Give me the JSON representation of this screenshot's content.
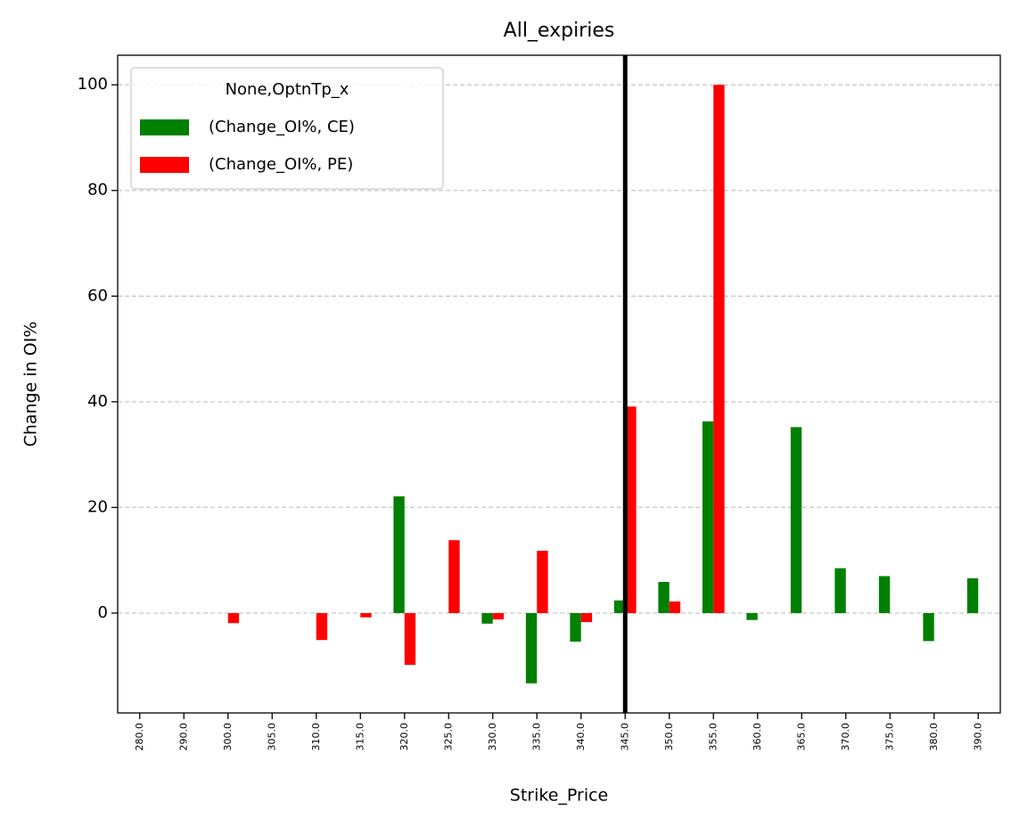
{
  "chart_data": {
    "type": "bar",
    "title": "All_expiries",
    "x_label": "Strike_Price",
    "y_label": "Change in OI%",
    "categories": [
      "280.0",
      "290.0",
      "300.0",
      "305.0",
      "310.0",
      "315.0",
      "320.0",
      "325.0",
      "330.0",
      "335.0",
      "340.0",
      "345.0",
      "350.0",
      "355.0",
      "360.0",
      "365.0",
      "370.0",
      "375.0",
      "380.0",
      "390.0"
    ],
    "series": [
      {
        "name": "(Change_OI%, CE)",
        "color": "#008000",
        "values": [
          null,
          null,
          null,
          null,
          null,
          null,
          22.1,
          null,
          -2.0,
          -13.3,
          -5.4,
          2.4,
          5.9,
          36.3,
          -1.3,
          35.2,
          8.5,
          7.0,
          -5.3,
          6.6
        ]
      },
      {
        "name": "(Change_OI%, PE)",
        "color": "#ff0000",
        "values": [
          null,
          null,
          -1.9,
          null,
          -5.1,
          -0.8,
          -9.8,
          13.8,
          -1.2,
          11.8,
          -1.7,
          39.1,
          2.2,
          100,
          null,
          null,
          null,
          null,
          null,
          null
        ]
      }
    ],
    "legend_title": "None,OptnTp_x",
    "legend": "upper left",
    "vline": "345.0",
    "ylim": [
      -18.9,
      105.6
    ],
    "yticks": [
      0,
      20,
      40,
      60,
      80,
      100
    ],
    "grid": true
  }
}
